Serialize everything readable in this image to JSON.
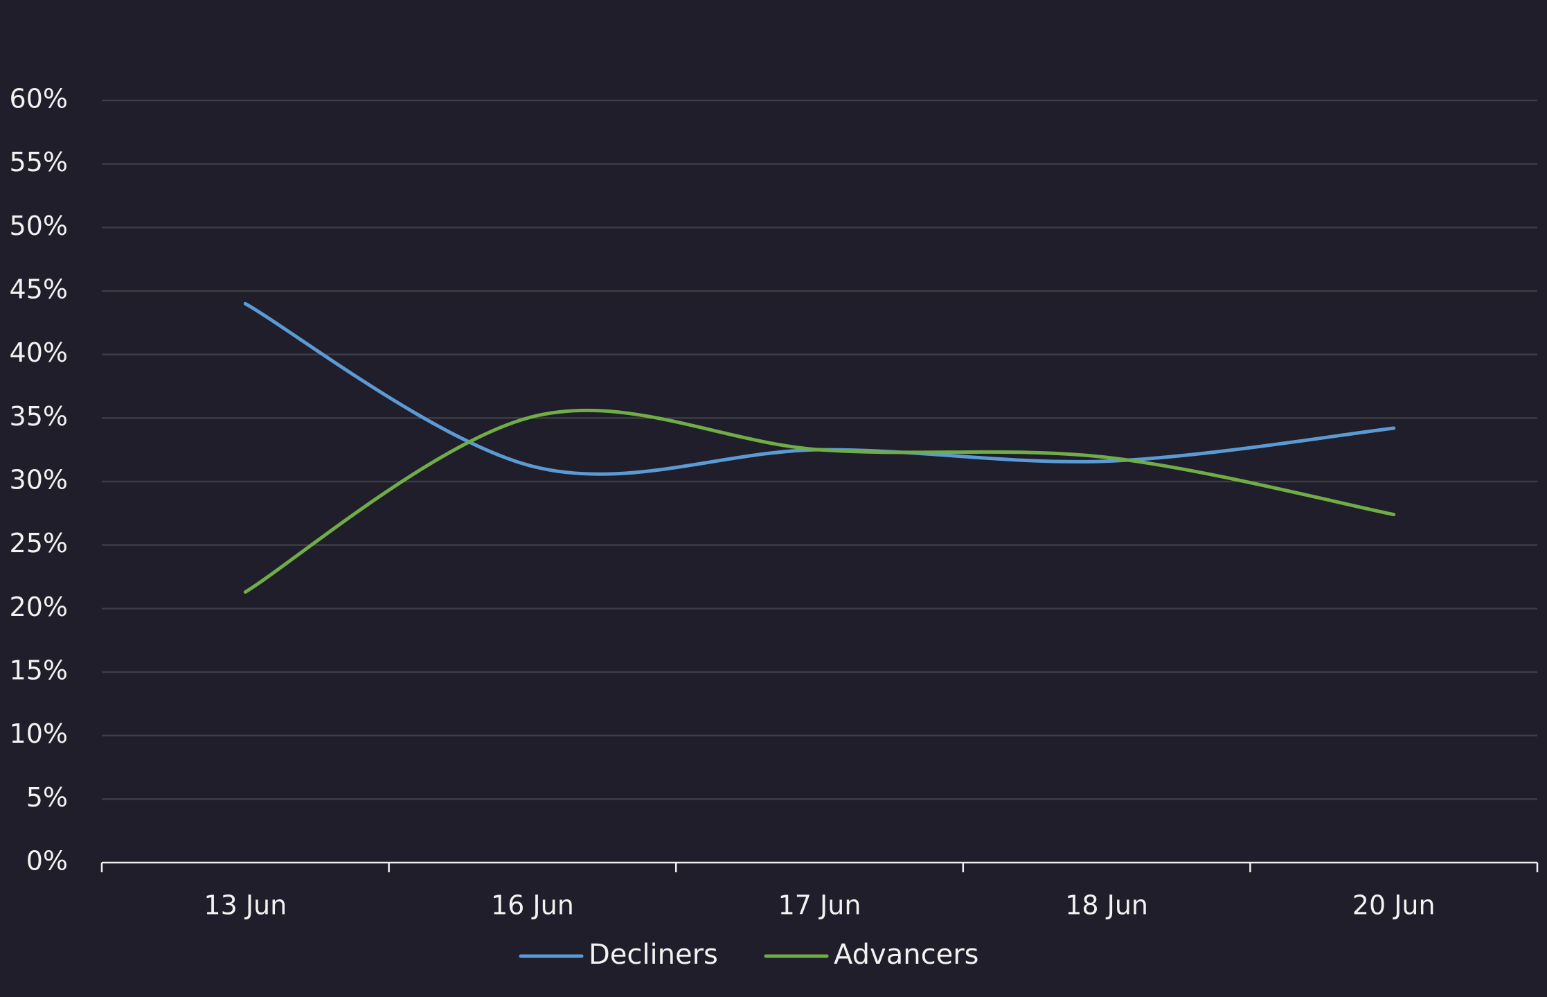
{
  "chart_data": {
    "type": "line",
    "title": "",
    "xlabel": "",
    "ylabel": "",
    "categories": [
      "13 Jun",
      "16 Jun",
      "17 Jun",
      "18 Jun",
      "20 Jun"
    ],
    "series": [
      {
        "name": "Decliners",
        "color": "#5b9bd5",
        "values": [
          44.0,
          31.2,
          32.5,
          31.6,
          34.2
        ]
      },
      {
        "name": "Advancers",
        "color": "#70ad47",
        "values": [
          21.3,
          35.1,
          32.5,
          31.9,
          27.4
        ]
      }
    ],
    "ylim": [
      0,
      60
    ],
    "yticks": [
      "0%",
      "5%",
      "10%",
      "15%",
      "20%",
      "25%",
      "30%",
      "35%",
      "40%",
      "45%",
      "50%",
      "55%",
      "60%"
    ],
    "grid": true,
    "smooth": true,
    "legend": "bottom-center"
  },
  "colors": {
    "background": "#1f1e2a",
    "grid": "#3d3d45",
    "text": "#f2f2f2"
  }
}
